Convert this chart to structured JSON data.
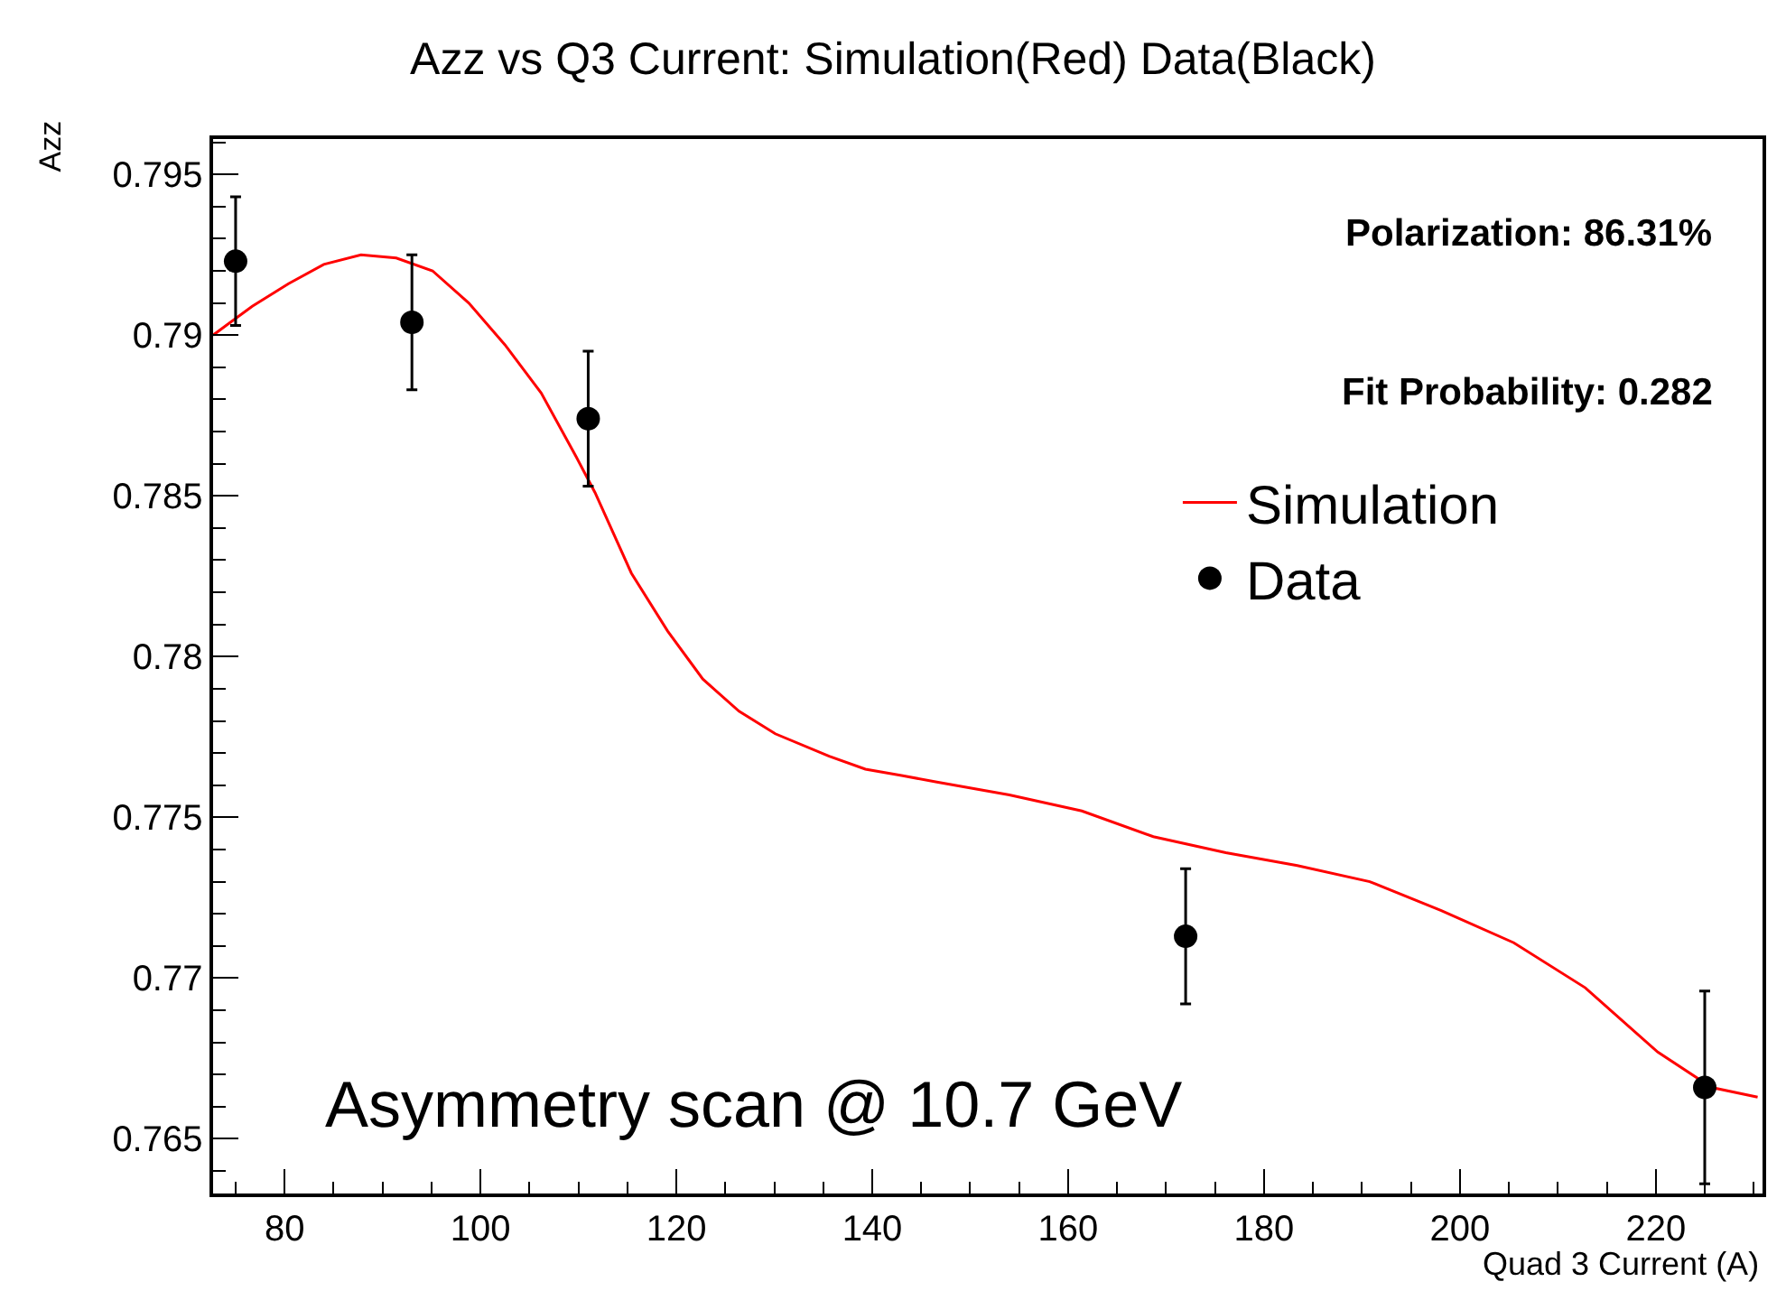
{
  "chart_data": {
    "type": "line",
    "title": "Azz vs Q3 Current: Simulation(Red) Data(Black)",
    "xlabel": "Quad 3 Current (A)",
    "ylabel": "Azz",
    "xlim": [
      72.7,
      230.9
    ],
    "xticks": [
      80,
      100,
      120,
      140,
      160,
      180,
      200,
      220
    ],
    "ylim": [
      0.7633,
      0.7961
    ],
    "yticks": [
      0.765,
      0.77,
      0.775,
      0.78,
      0.785,
      0.79,
      0.795
    ],
    "legend": "top right",
    "series": [
      {
        "name": "Simulation",
        "color": "#ff0000",
        "line_style": "solid",
        "marker": "none",
        "x": [
          72.7,
          76.7,
          80.4,
          84.0,
          87.8,
          91.4,
          95.1,
          98.8,
          102.5,
          106.2,
          109.8,
          111.7,
          115.4,
          119.1,
          122.7,
          126.4,
          130.1,
          135.6,
          139.3,
          143.0,
          146.6,
          154.0,
          161.4,
          168.7,
          176.1,
          183.4,
          190.8,
          198.1,
          205.5,
          212.8,
          220.2,
          225.7,
          230.4
        ],
        "values": [
          0.79,
          0.7909,
          0.7916,
          0.7922,
          0.7925,
          0.7924,
          0.792,
          0.791,
          0.7897,
          0.7882,
          0.7862,
          0.7851,
          0.7826,
          0.7808,
          0.7793,
          0.7783,
          0.7776,
          0.7769,
          0.7765,
          0.7763,
          0.7761,
          0.7757,
          0.7752,
          0.7744,
          0.7739,
          0.7735,
          0.773,
          0.7721,
          0.7711,
          0.7697,
          0.7677,
          0.7666,
          0.7663
        ]
      },
      {
        "name": "Data",
        "type": "scatter",
        "color": "#000000",
        "marker": "circle",
        "x": [
          75,
          93,
          111,
          172,
          225
        ],
        "values": [
          0.7923,
          0.7904,
          0.7874,
          0.7713,
          0.7666
        ],
        "errors": [
          0.002,
          0.0021,
          0.0021,
          0.0021,
          0.003
        ]
      }
    ],
    "annotations": [
      "Polarization: 86.31%",
      "Fit Probability: 0.282",
      "Asymmetry scan @ 10.7 GeV"
    ]
  }
}
